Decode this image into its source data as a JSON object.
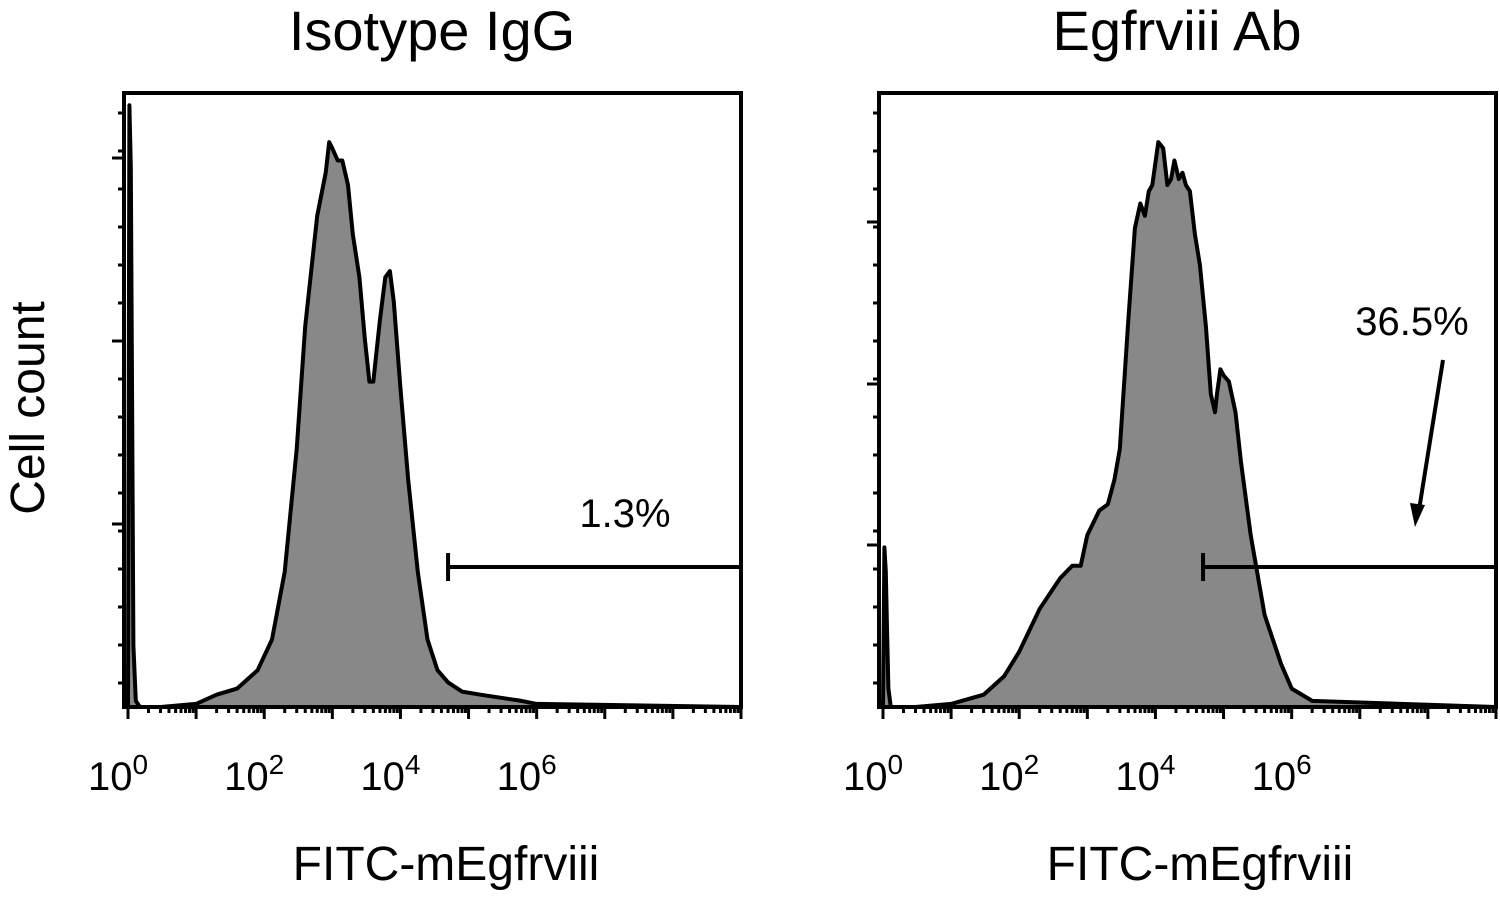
{
  "figure": {
    "ylabel": "Cell count",
    "colors": {
      "fill": "#888888",
      "line": "#000000"
    }
  },
  "chart_data": [
    {
      "type": "area",
      "title": "Isotype IgG",
      "xlabel": "FITC-mEgfrviii",
      "ylabel": "Cell count",
      "x_scale": "log10",
      "xlim": [
        1,
        1000000000
      ],
      "ylim": [
        0,
        1
      ],
      "x_ticks": [
        {
          "base": "10",
          "exp": "0",
          "value": 1
        },
        {
          "base": "10",
          "exp": "2",
          "value": 100
        },
        {
          "base": "10",
          "exp": "4",
          "value": 10000
        },
        {
          "base": "10",
          "exp": "6",
          "value": 1000000
        }
      ],
      "gate": {
        "label": "1.3%",
        "from": 50000,
        "to": 1000000000
      },
      "series": [
        {
          "x": [
            1,
            1.05,
            1.1,
            1.15,
            1.2,
            1.3,
            1.5,
            3,
            10,
            20,
            40,
            80,
            130,
            200,
            300,
            400,
            600,
            800,
            900,
            1000,
            1200,
            1400,
            1700,
            2000,
            2500,
            3000,
            3500,
            4000,
            5000,
            6000,
            7000,
            8000,
            10000,
            13000,
            18000,
            25000,
            35000,
            50000,
            80000,
            150000,
            300000,
            600000,
            1000000,
            1000000000
          ],
          "y": [
            0.0,
            0.98,
            0.88,
            0.5,
            0.1,
            0.01,
            0.0,
            0.0,
            0.005,
            0.02,
            0.03,
            0.06,
            0.11,
            0.22,
            0.42,
            0.62,
            0.8,
            0.87,
            0.92,
            0.91,
            0.89,
            0.89,
            0.85,
            0.77,
            0.7,
            0.6,
            0.53,
            0.53,
            0.63,
            0.7,
            0.71,
            0.66,
            0.52,
            0.37,
            0.22,
            0.11,
            0.06,
            0.04,
            0.025,
            0.02,
            0.015,
            0.01,
            0.005,
            0.0
          ]
        }
      ]
    },
    {
      "type": "area",
      "title": "Egfrviii Ab",
      "xlabel": "FITC-mEgfrviii",
      "ylabel": "Cell count",
      "x_scale": "log10",
      "xlim": [
        1,
        1000000000
      ],
      "ylim": [
        0,
        1
      ],
      "x_ticks": [
        {
          "base": "10",
          "exp": "0",
          "value": 1
        },
        {
          "base": "10",
          "exp": "2",
          "value": 100
        },
        {
          "base": "10",
          "exp": "4",
          "value": 10000
        },
        {
          "base": "10",
          "exp": "6",
          "value": 1000000
        }
      ],
      "gate": {
        "label": "36.5%",
        "from": 50000,
        "to": 1000000000
      },
      "series": [
        {
          "x": [
            1,
            1.05,
            1.1,
            1.15,
            1.2,
            1.3,
            1.5,
            3,
            10,
            30,
            60,
            100,
            200,
            400,
            600,
            800,
            1000,
            1500,
            2000,
            2500,
            3000,
            4000,
            5000,
            6000,
            7000,
            8000,
            9000,
            11000,
            13000,
            15000,
            17000,
            19000,
            22000,
            25000,
            28000,
            32000,
            38000,
            45000,
            55000,
            65000,
            75000,
            80000,
            90000,
            100000,
            120000,
            150000,
            180000,
            250000,
            400000,
            700000,
            1000000,
            2000000,
            1000000000
          ],
          "y": [
            0.0,
            0.26,
            0.22,
            0.12,
            0.03,
            0.0,
            0.0,
            0.0,
            0.005,
            0.02,
            0.05,
            0.09,
            0.16,
            0.21,
            0.23,
            0.23,
            0.28,
            0.32,
            0.33,
            0.37,
            0.42,
            0.63,
            0.78,
            0.82,
            0.8,
            0.84,
            0.85,
            0.92,
            0.91,
            0.85,
            0.86,
            0.89,
            0.86,
            0.87,
            0.85,
            0.84,
            0.77,
            0.72,
            0.62,
            0.51,
            0.48,
            0.51,
            0.55,
            0.54,
            0.53,
            0.48,
            0.4,
            0.28,
            0.15,
            0.07,
            0.03,
            0.01,
            0.0
          ]
        }
      ]
    }
  ]
}
